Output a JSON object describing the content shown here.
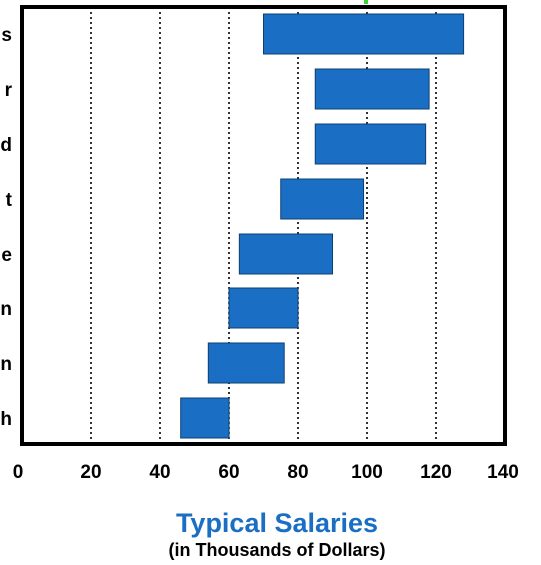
{
  "chart_data": {
    "type": "bar",
    "orientation": "horizontal-range",
    "title": "Typical Salaries",
    "subtitle": "(in Thousands of Dollars)",
    "category_labels": [
      "s",
      "r",
      "d",
      "t",
      "e",
      "n",
      "n",
      "h"
    ],
    "series": [
      {
        "ranges": [
          [
            70,
            128
          ],
          [
            85,
            118
          ],
          [
            85,
            117
          ],
          [
            75,
            99
          ],
          [
            63,
            90
          ],
          [
            60,
            80
          ],
          [
            54,
            76
          ],
          [
            46,
            60
          ]
        ]
      }
    ],
    "xlim": [
      0,
      140
    ],
    "xticks": [
      "0",
      "20",
      "40",
      "60",
      "80",
      "100",
      "120",
      "140"
    ],
    "grid": "vertical dotted",
    "legend": "none",
    "colors": {
      "bar_fill": "#1a6fc4",
      "bar_stroke": "#0d3f73",
      "title": "#1a6fc4",
      "frame": "#000000",
      "accent_mark": "#3cd23c"
    }
  }
}
